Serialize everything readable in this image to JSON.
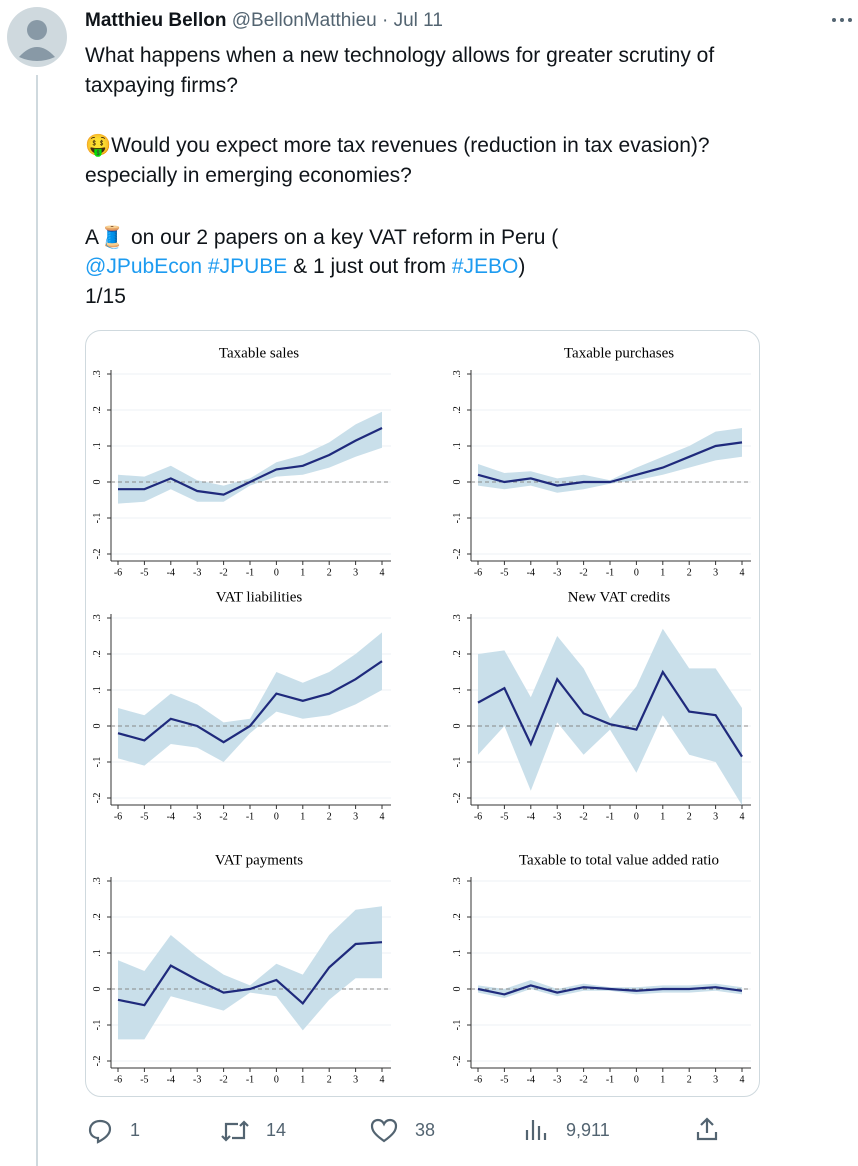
{
  "tweet": {
    "author": "Matthieu Bellon",
    "handle": "@BellonMatthieu",
    "separator": "·",
    "date": "Jul 11",
    "lines": [
      "What happens when a new technology allows for greater scrutiny of",
      "taxpaying firms?",
      "🤑Would you expect more tax revenues (reduction in tax evasion)?",
      "especially in emerging economies?",
      "A🧵 on our 2 papers on a key VAT reform in Peru ("
    ],
    "links_line": [
      "@JPubEcon",
      " ",
      "#JPUBE",
      " & 1 just out from ",
      "#JEBO",
      ")"
    ],
    "counter": "1/15",
    "actions": {
      "replies": "1",
      "reposts": "14",
      "likes": "38",
      "views": "9,911"
    }
  },
  "chart_data": [
    {
      "type": "line",
      "title": "Taxable sales",
      "color": "#1f2a7c",
      "band_color": "#c9dfea",
      "grid": true,
      "refline": 0,
      "x": [
        -6,
        -5,
        -4,
        -3,
        -2,
        -1,
        0,
        1,
        2,
        3,
        4
      ],
      "xlim": [
        -6,
        4
      ],
      "xticks": [
        -6,
        -5,
        -4,
        -3,
        -2,
        -1,
        0,
        1,
        2,
        3,
        4
      ],
      "ylim": [
        -0.2,
        0.3
      ],
      "yticks": [
        {
          "value": -0.2,
          "label": "-.2"
        },
        {
          "value": -0.1,
          "label": "-.1"
        },
        0,
        {
          "value": 0.1,
          "label": ".1"
        },
        {
          "value": 0.2,
          "label": ".2"
        },
        {
          "value": 0.3,
          "label": ".3"
        }
      ],
      "values": [
        -0.02,
        -0.02,
        0.01,
        -0.025,
        -0.035,
        0,
        0.035,
        0.045,
        0.075,
        0.115,
        0.15
      ],
      "lower": [
        -0.06,
        -0.055,
        -0.02,
        -0.055,
        -0.055,
        -0.01,
        0.015,
        0.02,
        0.04,
        0.07,
        0.095
      ],
      "upper": [
        0.02,
        0.015,
        0.045,
        0.005,
        -0.01,
        0.01,
        0.055,
        0.075,
        0.11,
        0.16,
        0.195
      ]
    },
    {
      "type": "line",
      "title": "Taxable purchases",
      "color": "#1f2a7c",
      "band_color": "#c9dfea",
      "grid": true,
      "refline": 0,
      "x": [
        -6,
        -5,
        -4,
        -3,
        -2,
        -1,
        0,
        1,
        2,
        3,
        4
      ],
      "xlim": [
        -6,
        4
      ],
      "xticks": [
        -6,
        -5,
        -4,
        -3,
        -2,
        -1,
        0,
        1,
        2,
        3,
        4
      ],
      "ylim": [
        -0.2,
        0.3
      ],
      "yticks": [
        {
          "value": -0.2,
          "label": "-.2"
        },
        {
          "value": -0.1,
          "label": "-.1"
        },
        0,
        {
          "value": 0.1,
          "label": ".1"
        },
        {
          "value": 0.2,
          "label": ".2"
        },
        {
          "value": 0.3,
          "label": ".3"
        }
      ],
      "values": [
        0.02,
        0,
        0.01,
        -0.01,
        0,
        0,
        0.02,
        0.04,
        0.07,
        0.1,
        0.11
      ],
      "lower": [
        -0.01,
        -0.02,
        -0.01,
        -0.03,
        -0.02,
        -0.005,
        0.005,
        0.02,
        0.04,
        0.06,
        0.07
      ],
      "upper": [
        0.05,
        0.025,
        0.03,
        0.01,
        0.02,
        0.005,
        0.04,
        0.07,
        0.1,
        0.14,
        0.15
      ]
    },
    {
      "type": "line",
      "title": "VAT liabilities",
      "color": "#1f2a7c",
      "band_color": "#c9dfea",
      "grid": true,
      "refline": 0,
      "x": [
        -6,
        -5,
        -4,
        -3,
        -2,
        -1,
        0,
        1,
        2,
        3,
        4
      ],
      "xlim": [
        -6,
        4
      ],
      "xticks": [
        -6,
        -5,
        -4,
        -3,
        -2,
        -1,
        0,
        1,
        2,
        3,
        4
      ],
      "ylim": [
        -0.2,
        0.3
      ],
      "yticks": [
        {
          "value": -0.2,
          "label": "-.2"
        },
        {
          "value": -0.1,
          "label": "-.1"
        },
        0,
        {
          "value": 0.1,
          "label": ".1"
        },
        {
          "value": 0.2,
          "label": ".2"
        },
        {
          "value": 0.3,
          "label": ".3"
        }
      ],
      "values": [
        -0.02,
        -0.04,
        0.02,
        0,
        -0.045,
        0,
        0.09,
        0.07,
        0.09,
        0.13,
        0.18
      ],
      "lower": [
        -0.09,
        -0.11,
        -0.05,
        -0.06,
        -0.1,
        -0.02,
        0.04,
        0.02,
        0.03,
        0.06,
        0.1
      ],
      "upper": [
        0.05,
        0.03,
        0.09,
        0.06,
        0.01,
        0.02,
        0.15,
        0.12,
        0.15,
        0.2,
        0.26
      ]
    },
    {
      "type": "line",
      "title": "New VAT credits",
      "color": "#1f2a7c",
      "band_color": "#c9dfea",
      "grid": true,
      "refline": 0,
      "x": [
        -6,
        -5,
        -4,
        -3,
        -2,
        -1,
        0,
        1,
        2,
        3,
        4
      ],
      "xlim": [
        -6,
        4
      ],
      "xticks": [
        -6,
        -5,
        -4,
        -3,
        -2,
        -1,
        0,
        1,
        2,
        3,
        4
      ],
      "ylim": [
        -0.2,
        0.3
      ],
      "yticks": [
        {
          "value": -0.2,
          "label": "-.2"
        },
        {
          "value": -0.1,
          "label": "-.1"
        },
        0,
        {
          "value": 0.1,
          "label": ".1"
        },
        {
          "value": 0.2,
          "label": ".2"
        },
        {
          "value": 0.3,
          "label": ".3"
        }
      ],
      "values": [
        0.065,
        0.105,
        -0.05,
        0.13,
        0.035,
        0.005,
        -0.01,
        0.15,
        0.04,
        0.03,
        -0.085
      ],
      "lower": [
        -0.08,
        0,
        -0.18,
        0.01,
        -0.08,
        -0.01,
        -0.13,
        0.03,
        -0.08,
        -0.1,
        -0.22
      ],
      "upper": [
        0.2,
        0.21,
        0.08,
        0.25,
        0.16,
        0.02,
        0.11,
        0.27,
        0.16,
        0.16,
        0.05
      ]
    },
    {
      "type": "line",
      "title": "VAT payments",
      "color": "#1f2a7c",
      "band_color": "#c9dfea",
      "grid": true,
      "refline": 0,
      "x": [
        -6,
        -5,
        -4,
        -3,
        -2,
        -1,
        0,
        1,
        2,
        3,
        4
      ],
      "xlim": [
        -6,
        4
      ],
      "xticks": [
        -6,
        -5,
        -4,
        -3,
        -2,
        -1,
        0,
        1,
        2,
        3,
        4
      ],
      "ylim": [
        -0.2,
        0.3
      ],
      "yticks": [
        {
          "value": -0.2,
          "label": "-.2"
        },
        {
          "value": -0.1,
          "label": "-.1"
        },
        0,
        {
          "value": 0.1,
          "label": ".1"
        },
        {
          "value": 0.2,
          "label": ".2"
        },
        {
          "value": 0.3,
          "label": ".3"
        }
      ],
      "values": [
        -0.03,
        -0.045,
        0.065,
        0.025,
        -0.01,
        0,
        0.025,
        -0.04,
        0.06,
        0.125,
        0.13
      ],
      "lower": [
        -0.14,
        -0.14,
        -0.02,
        -0.04,
        -0.06,
        -0.01,
        -0.02,
        -0.115,
        -0.03,
        0.03,
        0.03
      ],
      "upper": [
        0.08,
        0.05,
        0.15,
        0.09,
        0.04,
        0.01,
        0.07,
        0.04,
        0.15,
        0.22,
        0.23
      ]
    },
    {
      "type": "line",
      "title": "Taxable to total value added ratio",
      "color": "#1f2a7c",
      "band_color": "#c9dfea",
      "grid": true,
      "refline": 0,
      "x": [
        -6,
        -5,
        -4,
        -3,
        -2,
        -1,
        0,
        1,
        2,
        3,
        4
      ],
      "xlim": [
        -6,
        4
      ],
      "xticks": [
        -6,
        -5,
        -4,
        -3,
        -2,
        -1,
        0,
        1,
        2,
        3,
        4
      ],
      "ylim": [
        -0.2,
        0.3
      ],
      "yticks": [
        {
          "value": -0.2,
          "label": "-.2"
        },
        {
          "value": -0.1,
          "label": "-.1"
        },
        0,
        {
          "value": 0.1,
          "label": ".1"
        },
        {
          "value": 0.2,
          "label": ".2"
        },
        {
          "value": 0.3,
          "label": ".3"
        }
      ],
      "values": [
        0,
        -0.015,
        0.01,
        -0.01,
        0.005,
        0,
        -0.005,
        0,
        0,
        0.005,
        -0.005
      ],
      "lower": [
        -0.01,
        -0.025,
        0,
        -0.02,
        -0.005,
        -0.005,
        -0.015,
        -0.01,
        -0.01,
        -0.005,
        -0.015
      ],
      "upper": [
        0.01,
        0,
        0.025,
        0,
        0.015,
        0.005,
        0.005,
        0.01,
        0.01,
        0.015,
        0.005
      ]
    }
  ]
}
